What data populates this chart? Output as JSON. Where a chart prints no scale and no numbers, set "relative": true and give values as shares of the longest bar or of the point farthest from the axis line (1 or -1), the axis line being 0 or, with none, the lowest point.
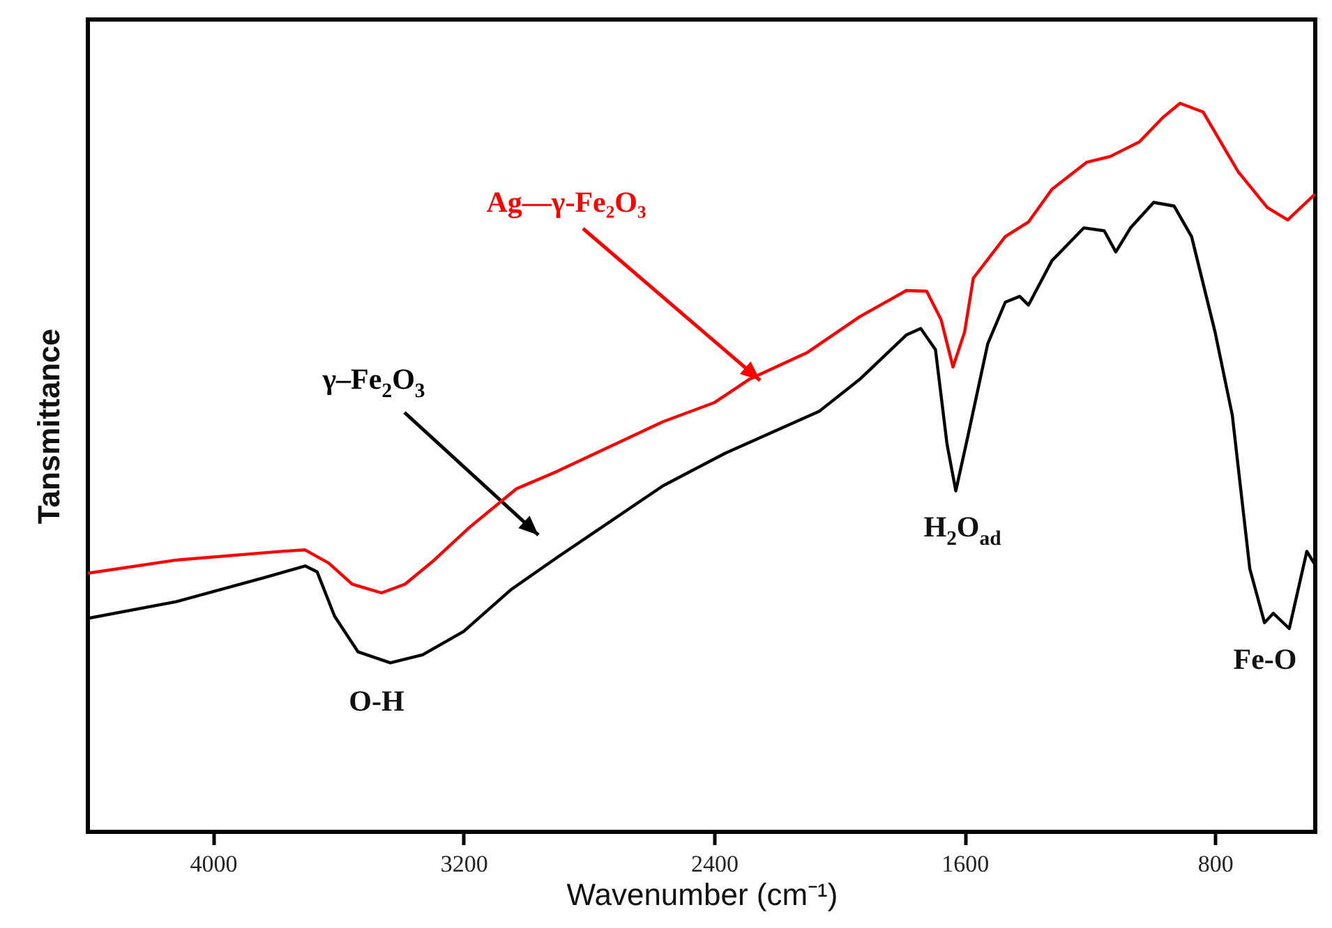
{
  "chart_data": {
    "type": "line",
    "xlabel": "Wavenumber (cm⁻¹)",
    "ylabel": "Tansmittance",
    "relative": true,
    "xlim": [
      4400,
      480
    ],
    "xticks": [
      4000,
      3200,
      2400,
      1600,
      800
    ],
    "marker": "none",
    "line_style": "solid",
    "annotations": [
      "O-H",
      "H$_{2}$O$_{ad}$",
      "Fe-O"
    ],
    "series": [
      {
        "name": "Ag—γ-Fe₂O₃",
        "color": "#ff0000",
        "x": [
          4400,
          4118,
          3781,
          3706,
          3631,
          3556,
          3462,
          3387,
          3294,
          3181,
          3031,
          2900,
          2563,
          2400,
          2288,
          2102,
          1935,
          1786,
          1721,
          1675,
          1637,
          1600,
          1572,
          1470,
          1396,
          1321,
          1210,
          1135,
          1042,
          968,
          912,
          838,
          726,
          633,
          568,
          484
        ],
        "values": [
          0.355,
          0.373,
          0.385,
          0.387,
          0.369,
          0.34,
          0.328,
          0.34,
          0.373,
          0.418,
          0.471,
          0.495,
          0.563,
          0.589,
          0.621,
          0.658,
          0.707,
          0.743,
          0.742,
          0.703,
          0.638,
          0.686,
          0.76,
          0.817,
          0.837,
          0.882,
          0.919,
          0.927,
          0.947,
          0.98,
          1.0,
          0.988,
          0.906,
          0.857,
          0.84,
          0.874
        ]
      },
      {
        "name": "γ–Fe$_{2}$O$_{3}$",
        "color": "#000000",
        "x": [
          4400,
          4118,
          3837,
          3706,
          3668,
          3612,
          3537,
          3434,
          3331,
          3200,
          3050,
          2900,
          2563,
          2363,
          2065,
          1935,
          1786,
          1740,
          1693,
          1656,
          1628,
          1591,
          1526,
          1470,
          1424,
          1396,
          1321,
          1219,
          1154,
          1117,
          1070,
          996,
          931,
          875,
          800,
          745,
          689,
          642,
          614,
          563,
          507,
          484
        ],
        "values": [
          0.293,
          0.316,
          0.349,
          0.365,
          0.357,
          0.296,
          0.247,
          0.232,
          0.243,
          0.275,
          0.332,
          0.377,
          0.475,
          0.52,
          0.577,
          0.621,
          0.682,
          0.691,
          0.662,
          0.532,
          0.468,
          0.54,
          0.67,
          0.727,
          0.735,
          0.723,
          0.784,
          0.829,
          0.825,
          0.796,
          0.829,
          0.864,
          0.859,
          0.817,
          0.686,
          0.572,
          0.361,
          0.287,
          0.3,
          0.279,
          0.385,
          0.369
        ]
      }
    ]
  }
}
